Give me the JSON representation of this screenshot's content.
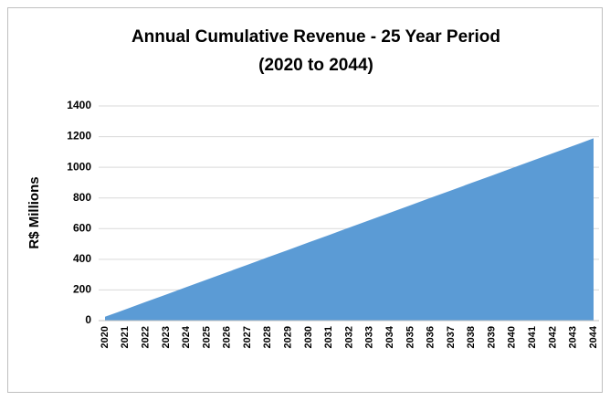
{
  "chart_data": {
    "type": "area",
    "title": "Annual Cumulative Revenue - 25 Year Period",
    "subtitle": "(2020 to 2044)",
    "ylabel": "R$ Millions",
    "categories": [
      "2020",
      "2021",
      "2022",
      "2023",
      "2024",
      "2025",
      "2026",
      "2027",
      "2028",
      "2029",
      "2030",
      "2031",
      "2032",
      "2033",
      "2034",
      "2035",
      "2036",
      "2037",
      "2038",
      "2039",
      "2040",
      "2041",
      "2042",
      "2043",
      "2044"
    ],
    "values": [
      25,
      73,
      122,
      170,
      219,
      267,
      316,
      364,
      413,
      461,
      510,
      558,
      607,
      655,
      704,
      752,
      801,
      849,
      898,
      946,
      995,
      1043,
      1092,
      1140,
      1189
    ],
    "color": "#5b9bd5",
    "ylim": [
      0,
      1400
    ],
    "yticks": [
      0,
      200,
      400,
      600,
      800,
      1000,
      1200,
      1400
    ],
    "grid": true
  }
}
